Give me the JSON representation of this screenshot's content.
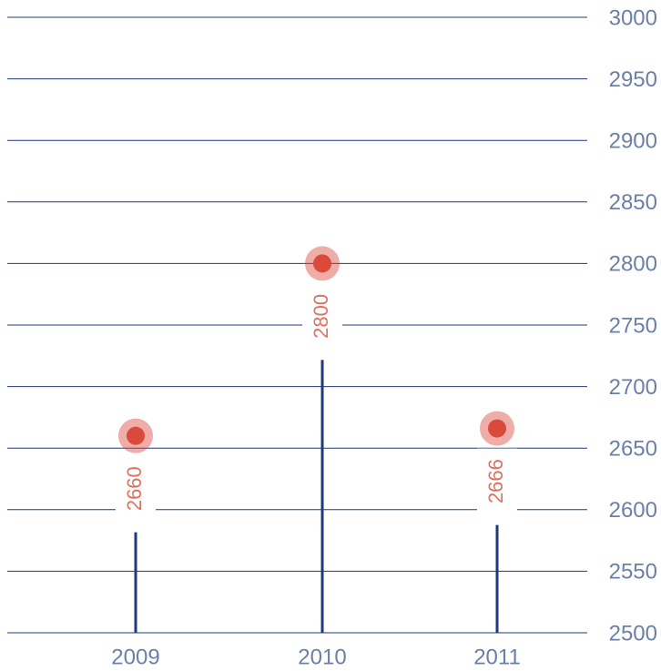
{
  "chart_data": {
    "type": "lollipop",
    "categories": [
      "2009",
      "2010",
      "2011"
    ],
    "values": [
      2660,
      2800,
      2666
    ],
    "color": "#1f3a7a",
    "marker_color": "#d94a3a",
    "ylim": [
      2500,
      3000
    ],
    "yticks": [
      2500,
      2550,
      2600,
      2650,
      2700,
      2750,
      2800,
      2850,
      2900,
      2950,
      3000
    ],
    "grid": true
  }
}
